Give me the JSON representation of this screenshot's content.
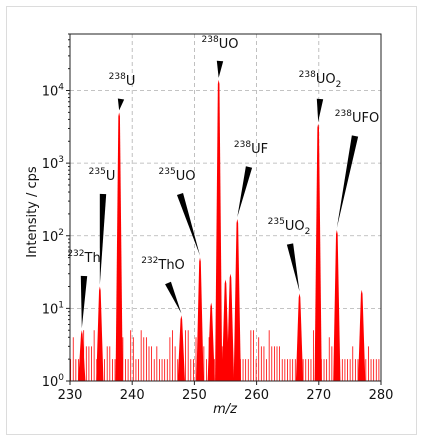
{
  "chart_data": {
    "type": "bar",
    "xlabel": "m/z",
    "ylabel": "Intensity / cps",
    "xlim": [
      230,
      280
    ],
    "ylim": [
      1,
      60000
    ],
    "yscale": "log",
    "grid": true,
    "bar_color": "#ff0000",
    "x_ticks": [
      "230",
      "240",
      "250",
      "260",
      "270",
      "280"
    ],
    "y_ticks": [
      {
        "base": "10",
        "exp": "0"
      },
      {
        "base": "10",
        "exp": "1"
      },
      {
        "base": "10",
        "exp": "2"
      },
      {
        "base": "10",
        "exp": "3"
      },
      {
        "base": "10",
        "exp": "4"
      }
    ],
    "peaks": [
      {
        "x": 231.9,
        "y": 5
      },
      {
        "x": 234.8,
        "y": 20
      },
      {
        "x": 237.9,
        "y": 5000
      },
      {
        "x": 247.9,
        "y": 8
      },
      {
        "x": 250.9,
        "y": 50
      },
      {
        "x": 252.7,
        "y": 12
      },
      {
        "x": 253.9,
        "y": 14000
      },
      {
        "x": 255.0,
        "y": 25
      },
      {
        "x": 255.8,
        "y": 30
      },
      {
        "x": 256.9,
        "y": 170
      },
      {
        "x": 266.9,
        "y": 16
      },
      {
        "x": 269.9,
        "y": 3500
      },
      {
        "x": 272.9,
        "y": 120
      },
      {
        "x": 276.9,
        "y": 18
      }
    ],
    "annotations": [
      {
        "base": "Th",
        "iso": "232",
        "sub": "",
        "x": 231.9,
        "y": 5
      },
      {
        "base": "U",
        "iso": "235",
        "sub": "",
        "x": 234.8,
        "y": 20
      },
      {
        "base": "U",
        "iso": "238",
        "sub": "",
        "x": 237.9,
        "y": 5000
      },
      {
        "base": "ThO",
        "iso": "232",
        "sub": "",
        "x": 247.9,
        "y": 8
      },
      {
        "base": "UO",
        "iso": "235",
        "sub": "",
        "x": 250.9,
        "y": 50
      },
      {
        "base": "UO",
        "iso": "238",
        "sub": "",
        "x": 253.9,
        "y": 14000
      },
      {
        "base": "UF",
        "iso": "238",
        "sub": "",
        "x": 256.9,
        "y": 170
      },
      {
        "base": "UO",
        "iso": "235",
        "sub": "2",
        "x": 266.9,
        "y": 16
      },
      {
        "base": "UO",
        "iso": "238",
        "sub": "2",
        "x": 269.9,
        "y": 3500
      },
      {
        "base": "UFO",
        "iso": "238",
        "sub": "",
        "x": 272.9,
        "y": 120
      }
    ]
  }
}
